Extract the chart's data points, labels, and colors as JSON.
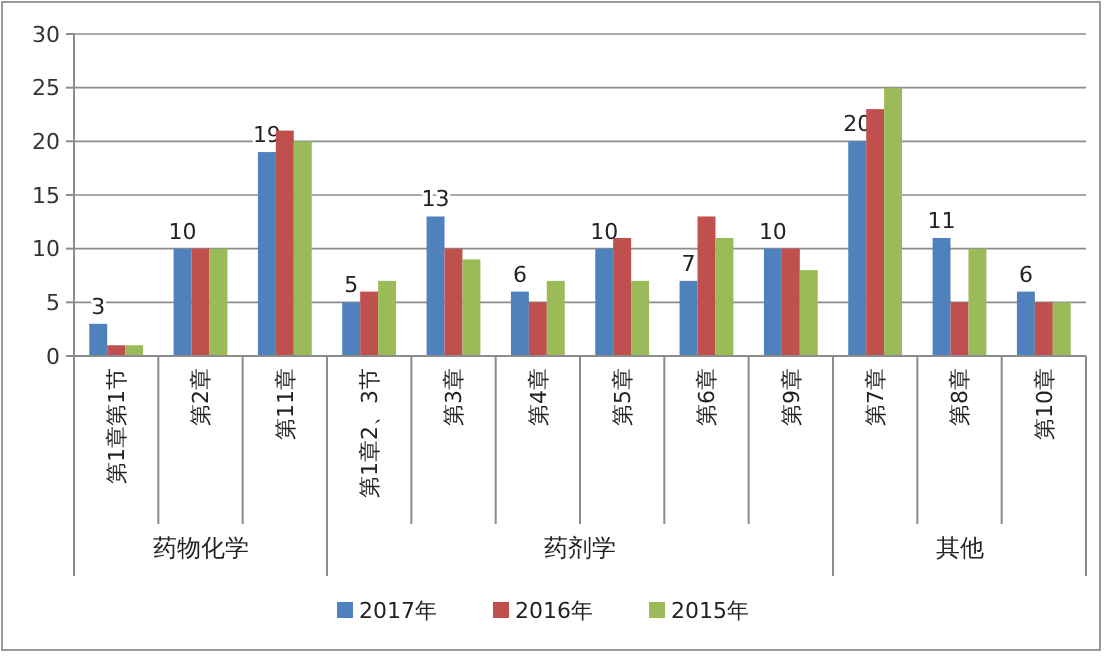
{
  "chart_data": {
    "type": "bar",
    "categories": [
      "第1章第1节",
      "第2章",
      "第11章",
      "第1章2、3节",
      "第3章",
      "第4章",
      "第5章",
      "第6章",
      "第9章",
      "第7章",
      "第8章",
      "第10章"
    ],
    "series": [
      {
        "name": "2017年",
        "color": "#4f81bd",
        "values": [
          3,
          10,
          19,
          5,
          13,
          6,
          10,
          7,
          10,
          20,
          11,
          6
        ],
        "value_labels": [
          "3",
          "10",
          "19",
          "5",
          "13",
          "6",
          "10",
          "7",
          "10",
          "20",
          "11",
          "6"
        ]
      },
      {
        "name": "2016年",
        "color": "#c0504d",
        "values": [
          1,
          10,
          21,
          6,
          10,
          5,
          11,
          13,
          10,
          23,
          5,
          5
        ]
      },
      {
        "name": "2015年",
        "color": "#9bbb59",
        "values": [
          1,
          10,
          20,
          7,
          9,
          7,
          7,
          11,
          8,
          25,
          10,
          5
        ]
      }
    ],
    "annotations": [
      "药物化学",
      "药剂学",
      "其他"
    ],
    "ylim": [
      0,
      30
    ],
    "yticks": [
      0,
      5,
      10,
      15,
      20,
      25,
      30
    ],
    "grid": "y",
    "legend": "bottom"
  }
}
